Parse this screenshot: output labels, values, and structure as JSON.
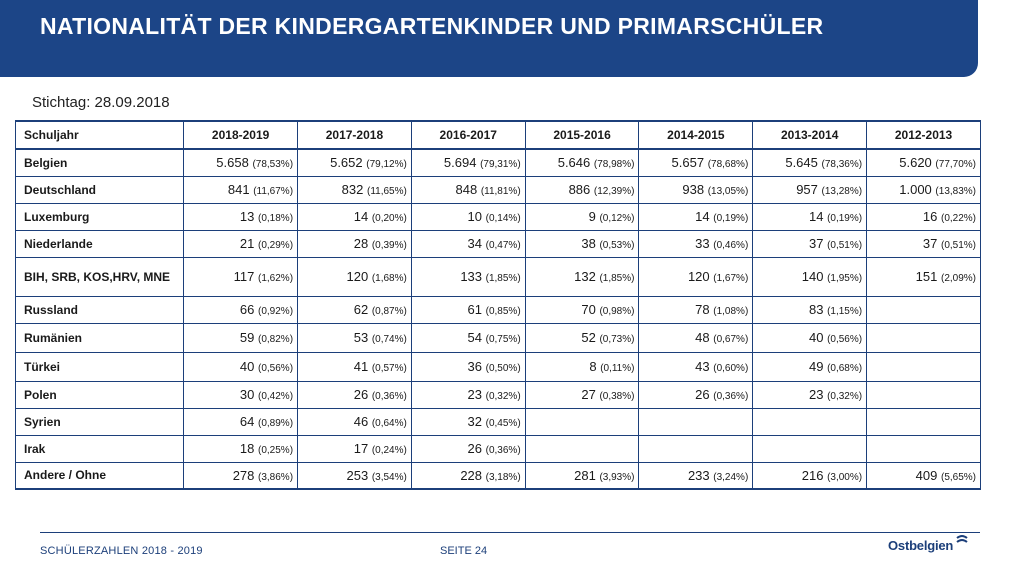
{
  "title": "NATIONALITÄT DER KINDERGARTENKINDER UND PRIMARSCHÜLER",
  "stichtag": "Stichtag: 28.09.2018",
  "table": {
    "header": [
      "Schuljahr",
      "2018-2019",
      "2017-2018",
      "2016-2017",
      "2015-2016",
      "2014-2015",
      "2013-2014",
      "2012-2013"
    ],
    "rows": [
      {
        "label": "Belgien",
        "cells": [
          {
            "n": "5.658",
            "p": "(78,53%)"
          },
          {
            "n": "5.652",
            "p": "(79,12%)"
          },
          {
            "n": "5.694",
            "p": "(79,31%)"
          },
          {
            "n": "5.646",
            "p": "(78,98%)"
          },
          {
            "n": "5.657",
            "p": "(78,68%)"
          },
          {
            "n": "5.645",
            "p": "(78,36%)"
          },
          {
            "n": "5.620",
            "p": "(77,70%)"
          }
        ]
      },
      {
        "label": "Deutschland",
        "cells": [
          {
            "n": "841",
            "p": "(11,67%)"
          },
          {
            "n": "832",
            "p": "(11,65%)"
          },
          {
            "n": "848",
            "p": "(11,81%)"
          },
          {
            "n": "886",
            "p": "(12,39%)"
          },
          {
            "n": "938",
            "p": "(13,05%)"
          },
          {
            "n": "957",
            "p": "(13,28%)"
          },
          {
            "n": "1.000",
            "p": "(13,83%)"
          }
        ]
      },
      {
        "label": "Luxemburg",
        "cells": [
          {
            "n": "13",
            "p": "(0,18%)"
          },
          {
            "n": "14",
            "p": "(0,20%)"
          },
          {
            "n": "10",
            "p": "(0,14%)"
          },
          {
            "n": "9",
            "p": "(0,12%)"
          },
          {
            "n": "14",
            "p": "(0,19%)"
          },
          {
            "n": "14",
            "p": "(0,19%)"
          },
          {
            "n": "16",
            "p": "(0,22%)"
          }
        ]
      },
      {
        "label": "Niederlande",
        "cells": [
          {
            "n": "21",
            "p": "(0,29%)"
          },
          {
            "n": "28",
            "p": "(0,39%)"
          },
          {
            "n": "34",
            "p": "(0,47%)"
          },
          {
            "n": "38",
            "p": "(0,53%)"
          },
          {
            "n": "33",
            "p": "(0,46%)"
          },
          {
            "n": "37",
            "p": "(0,51%)"
          },
          {
            "n": "37",
            "p": "(0,51%)"
          }
        ]
      },
      {
        "label": "BIH, SRB, KOS,HRV, MNE",
        "cells": [
          {
            "n": "117",
            "p": "(1,62%)"
          },
          {
            "n": "120",
            "p": "(1,68%)"
          },
          {
            "n": "133",
            "p": "(1,85%)"
          },
          {
            "n": "132",
            "p": "(1,85%)"
          },
          {
            "n": "120",
            "p": "(1,67%)"
          },
          {
            "n": "140",
            "p": "(1,95%)"
          },
          {
            "n": "151",
            "p": "(2,09%)"
          }
        ]
      },
      {
        "label": "Russland",
        "cells": [
          {
            "n": "66",
            "p": "(0,92%)"
          },
          {
            "n": "62",
            "p": "(0,87%)"
          },
          {
            "n": "61",
            "p": "(0,85%)"
          },
          {
            "n": "70",
            "p": "(0,98%)"
          },
          {
            "n": "78",
            "p": "(1,08%)"
          },
          {
            "n": "83",
            "p": "(1,15%)"
          },
          {
            "n": "",
            "p": ""
          }
        ]
      },
      {
        "label": "Rumänien",
        "cells": [
          {
            "n": "59",
            "p": "(0,82%)"
          },
          {
            "n": "53",
            "p": "(0,74%)"
          },
          {
            "n": "54",
            "p": "(0,75%)"
          },
          {
            "n": "52",
            "p": "(0,73%)"
          },
          {
            "n": "48",
            "p": "(0,67%)"
          },
          {
            "n": "40",
            "p": "(0,56%)"
          },
          {
            "n": "",
            "p": ""
          }
        ]
      },
      {
        "label": "Türkei",
        "cells": [
          {
            "n": "40",
            "p": "(0,56%)"
          },
          {
            "n": "41",
            "p": "(0,57%)"
          },
          {
            "n": "36",
            "p": "(0,50%)"
          },
          {
            "n": "8",
            "p": "(0,11%)"
          },
          {
            "n": "43",
            "p": "(0,60%)"
          },
          {
            "n": "49",
            "p": "(0,68%)"
          },
          {
            "n": "",
            "p": ""
          }
        ]
      },
      {
        "label": "Polen",
        "cells": [
          {
            "n": "30",
            "p": "(0,42%)"
          },
          {
            "n": "26",
            "p": "(0,36%)"
          },
          {
            "n": "23",
            "p": "(0,32%)"
          },
          {
            "n": "27",
            "p": "(0,38%)"
          },
          {
            "n": "26",
            "p": "(0,36%)"
          },
          {
            "n": "23",
            "p": "(0,32%)"
          },
          {
            "n": "",
            "p": ""
          }
        ]
      },
      {
        "label": "Syrien",
        "cells": [
          {
            "n": "64",
            "p": "(0,89%)"
          },
          {
            "n": "46",
            "p": "(0,64%)"
          },
          {
            "n": "32",
            "p": "(0,45%)"
          },
          {
            "n": "",
            "p": ""
          },
          {
            "n": "",
            "p": ""
          },
          {
            "n": "",
            "p": ""
          },
          {
            "n": "",
            "p": ""
          }
        ]
      },
      {
        "label": "Irak",
        "cells": [
          {
            "n": "18",
            "p": "(0,25%)"
          },
          {
            "n": "17",
            "p": "(0,24%)"
          },
          {
            "n": "26",
            "p": "(0,36%)"
          },
          {
            "n": "",
            "p": ""
          },
          {
            "n": "",
            "p": ""
          },
          {
            "n": "",
            "p": ""
          },
          {
            "n": "",
            "p": ""
          }
        ]
      },
      {
        "label": "Andere / Ohne",
        "cells": [
          {
            "n": "278",
            "p": "(3,86%)"
          },
          {
            "n": "253",
            "p": "(3,54%)"
          },
          {
            "n": "228",
            "p": "(3,18%)"
          },
          {
            "n": "281",
            "p": "(3,93%)"
          },
          {
            "n": "233",
            "p": "(3,24%)"
          },
          {
            "n": "216",
            "p": "(3,00%)"
          },
          {
            "n": "409",
            "p": "(5,65%)"
          }
        ]
      }
    ]
  },
  "footer": {
    "left": "SCHÜLERZAHLEN 2018 - 2019",
    "page": "SEITE 24",
    "logo": "Ostbelgien"
  },
  "colors": {
    "brand": "#1c4587",
    "line": "#1c3f7a"
  }
}
